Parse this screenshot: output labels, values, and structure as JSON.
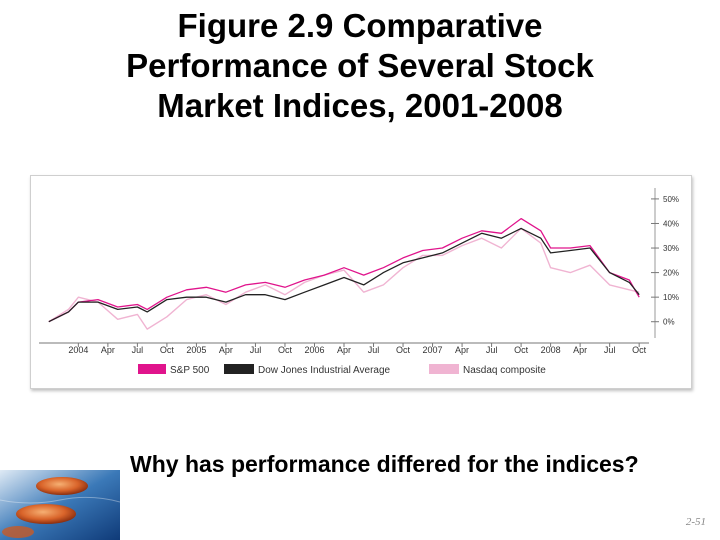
{
  "slide": {
    "title_lines": [
      "Figure 2.9 Comparative",
      "Performance of Several Stock",
      "Market Indices, 2001-2008"
    ],
    "question": "Why has performance differed for the indices?",
    "page_number": "2-51",
    "decoration_icon": "stones-in-water-image"
  },
  "chart_data": {
    "type": "line",
    "title": "",
    "xlabel": "",
    "ylabel": "",
    "x_labels": [
      "2004",
      "Apr",
      "Jul",
      "Oct",
      "2005",
      "Apr",
      "Jul",
      "Oct",
      "2006",
      "Apr",
      "Jul",
      "Oct",
      "2007",
      "Apr",
      "Jul",
      "Oct",
      "2008",
      "Apr",
      "Jul",
      "Oct"
    ],
    "y_ticks": [
      0,
      10,
      20,
      30,
      40,
      50
    ],
    "y_tick_labels": [
      "0%",
      "10%",
      "20%",
      "30%",
      "40%",
      "50%"
    ],
    "ylim": [
      -5,
      52
    ],
    "grid": false,
    "legend_position": "bottom",
    "x": [
      "2003-10",
      "2003-12",
      "2004-01",
      "2004-03",
      "2004-05",
      "2004-07",
      "2004-08",
      "2004-10",
      "2004-12",
      "2005-02",
      "2005-04",
      "2005-06",
      "2005-08",
      "2005-10",
      "2005-12",
      "2006-02",
      "2006-04",
      "2006-06",
      "2006-08",
      "2006-10",
      "2006-12",
      "2007-02",
      "2007-04",
      "2007-06",
      "2007-08",
      "2007-10",
      "2007-12",
      "2008-01",
      "2008-03",
      "2008-05",
      "2008-07",
      "2008-09",
      "2008-10"
    ],
    "series": [
      {
        "name": "S&P 500",
        "color": "#e0148c",
        "values": [
          0,
          4,
          8,
          9,
          6,
          7,
          5,
          10,
          13,
          14,
          12,
          15,
          16,
          14,
          17,
          19,
          22,
          19,
          22,
          26,
          29,
          30,
          34,
          37,
          36,
          42,
          37,
          30,
          30,
          31,
          20,
          17,
          10
        ]
      },
      {
        "name": "Dow Jones Industrial Average",
        "color": "#222222",
        "values": [
          0,
          4,
          8,
          8,
          5,
          6,
          4,
          9,
          10,
          10,
          8,
          11,
          11,
          9,
          12,
          15,
          18,
          15,
          20,
          24,
          26,
          28,
          32,
          36,
          34,
          38,
          34,
          28,
          29,
          30,
          20,
          16,
          11
        ]
      },
      {
        "name": "Nasdaq composite",
        "color": "#f0b4d2",
        "values": [
          0,
          5,
          10,
          8,
          1,
          3,
          -3,
          2,
          9,
          11,
          7,
          12,
          15,
          11,
          16,
          19,
          21,
          12,
          15,
          22,
          27,
          27,
          31,
          34,
          30,
          38,
          32,
          22,
          20,
          23,
          15,
          13,
          12
        ]
      }
    ]
  }
}
